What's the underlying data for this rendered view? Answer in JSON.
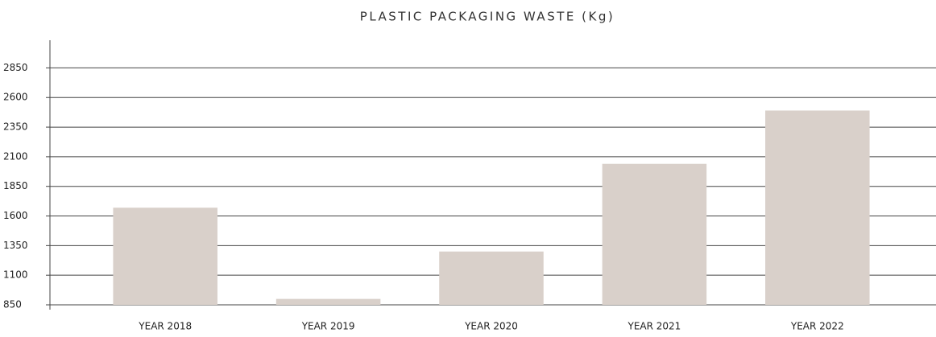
{
  "chart_data": {
    "type": "bar",
    "title": "PLASTIC PACKAGING WASTE (Kg)",
    "categories": [
      "YEAR 2018",
      "YEAR 2019",
      "YEAR 2020",
      "YEAR 2021",
      "YEAR 2022"
    ],
    "values": [
      1670,
      900,
      1300,
      2040,
      2490
    ],
    "color": "#d9d0ca",
    "ylim": [
      850,
      3100
    ],
    "yticks": [
      850,
      1100,
      1350,
      1600,
      1850,
      2100,
      2350,
      2600,
      2850
    ],
    "grid": true
  }
}
